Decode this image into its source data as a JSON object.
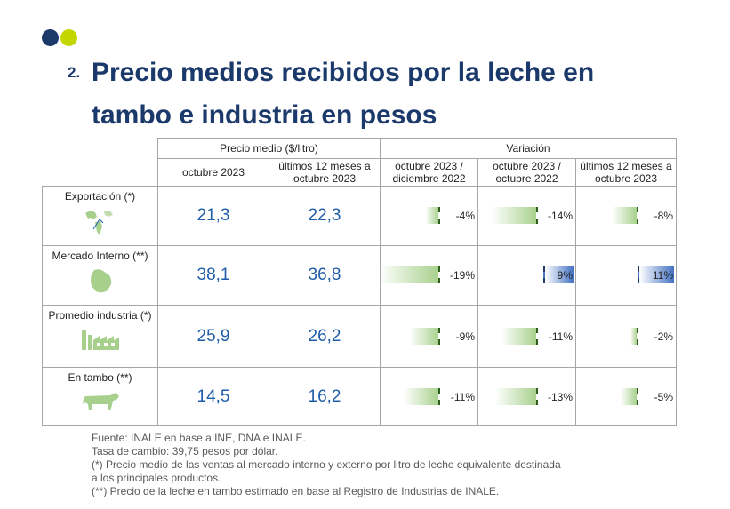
{
  "colors": {
    "dot_navy": "#1b3a6b",
    "dot_lime": "#c4d600",
    "value_blue": "#1f5da8",
    "bar_green": "#a9d18e",
    "bar_blue": "#4472c4",
    "icon_green": "#a8d08d"
  },
  "header": {
    "number": "2.",
    "title": "Precio medios recibidos por la leche en tambo e industria en pesos"
  },
  "table": {
    "group_headers": {
      "precio": "Precio medio ($/litro)",
      "variacion": "Variación"
    },
    "col_headers": [
      "octubre 2023",
      "últimos 12 meses a octubre 2023",
      "octubre 2023 / diciembre 2022",
      "octubre 2023 / octubre 2022",
      "últimos 12 meses a octubre 2023"
    ],
    "rows": [
      {
        "label": "Exportación (*)",
        "icon": "world-map-icon",
        "oct": "21,3",
        "u12": "22,3",
        "v1": {
          "text": "-4%",
          "value": -4
        },
        "v2": {
          "text": "-14%",
          "value": -14
        },
        "v3": {
          "text": "-8%",
          "value": -8
        }
      },
      {
        "label": "Mercado Interno (**)",
        "icon": "uruguay-map-icon",
        "oct": "38,1",
        "u12": "36,8",
        "v1": {
          "text": "-19%",
          "value": -19
        },
        "v2": {
          "text": "9%",
          "value": 9
        },
        "v3": {
          "text": "11%",
          "value": 11
        }
      },
      {
        "label": "Promedio industria (*)",
        "icon": "factory-icon",
        "oct": "25,9",
        "u12": "26,2",
        "v1": {
          "text": "-9%",
          "value": -9
        },
        "v2": {
          "text": "-11%",
          "value": -11
        },
        "v3": {
          "text": "-2%",
          "value": -2
        }
      },
      {
        "label": "En tambo (**)",
        "icon": "cow-icon",
        "oct": "14,5",
        "u12": "16,2",
        "v1": {
          "text": "-11%",
          "value": -11
        },
        "v2": {
          "text": "-13%",
          "value": -13
        },
        "v3": {
          "text": "-5%",
          "value": -5
        }
      }
    ]
  },
  "notes": [
    "Fuente: INALE en base a INE, DNA e INALE.",
    "Tasa de cambio: 39,75 pesos por dólar.",
    "(*) Precio medio de las ventas al mercado interno y externo por litro de leche equivalente destinada",
    "a los principales productos.",
    "(**) Precio de la leche en tambo estimado en base al Registro de Industrias de INALE."
  ]
}
